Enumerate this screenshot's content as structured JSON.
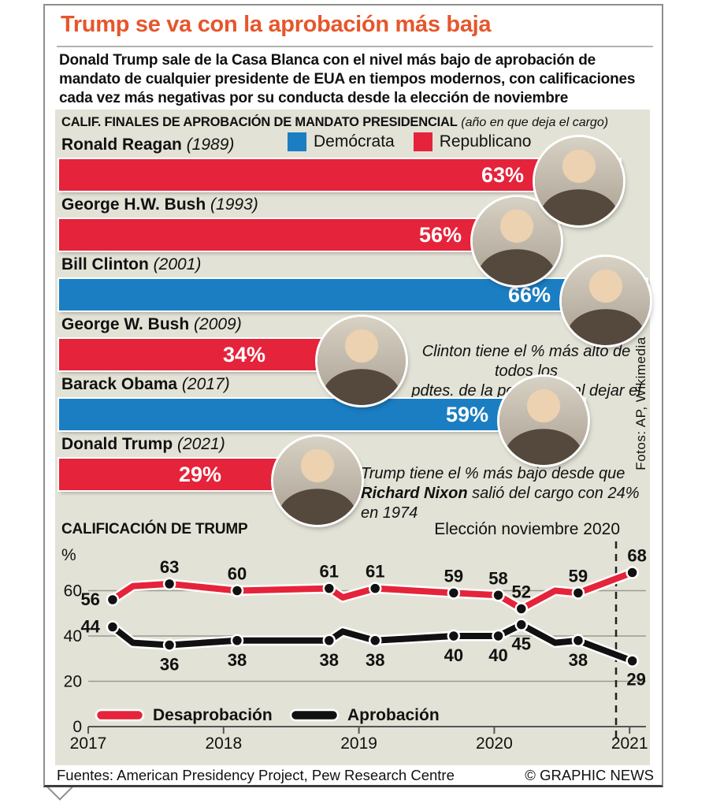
{
  "title": "Trump se va con la aprobación más baja",
  "intro": "Donald Trump sale de la Casa Blanca con el nivel más bajo de aprobación de mandato de cualquier presidente de EUA en tiempos modernos, con calificaciones cada vez más negativas por su conducta desde la elección de noviembre",
  "colors": {
    "republican": "#e5233a",
    "democrat": "#1b7ec2",
    "accent": "#e6562b",
    "panel": "#e3e2d6"
  },
  "credits": {
    "photos": "Fotos: AP, Wikimedia"
  },
  "footer": {
    "sources": "Fuentes: American Presidency Project, Pew Research Centre",
    "copyright": "© GRAPHIC NEWS"
  },
  "chart_data": [
    {
      "type": "bar",
      "orientation": "horizontal",
      "title": "CALIF. FINALES DE APROBACIÓN DE MANDATO PRESIDENCIAL",
      "subtitle": "(año en que deja el cargo)",
      "unit": "%",
      "xlim": [
        0,
        67
      ],
      "legend": [
        {
          "label": "Demócrata",
          "party": "democrat"
        },
        {
          "label": "Republicano",
          "party": "republican"
        }
      ],
      "bars": [
        {
          "name": "Ronald Reagan",
          "year_label": "(1989)",
          "value": 63,
          "pct_label": "63%",
          "party": "republican",
          "photo_pos": "inside"
        },
        {
          "name": "George H.W. Bush",
          "year_label": "(1993)",
          "value": 56,
          "pct_label": "56%",
          "party": "republican",
          "photo_pos": "inside"
        },
        {
          "name": "Bill Clinton",
          "year_label": "(2001)",
          "value": 66,
          "pct_label": "66%",
          "party": "democrat",
          "photo_pos": "inside"
        },
        {
          "name": "George W. Bush",
          "year_label": "(2009)",
          "value": 34,
          "pct_label": "34%",
          "party": "republican",
          "photo_pos": "end"
        },
        {
          "name": "Barack Obama",
          "year_label": "(2017)",
          "value": 59,
          "pct_label": "59%",
          "party": "democrat",
          "photo_pos": "inside"
        },
        {
          "name": "Donald Trump",
          "year_label": "(2021)",
          "value": 29,
          "pct_label": "29%",
          "party": "republican",
          "photo_pos": "end"
        }
      ],
      "annotations": [
        {
          "id": "clinton-note",
          "lines": [
            [
              {
                "t": "Clinton tiene el % más alto de todos los"
              }
            ],
            [
              {
                "t": "pdtes. de la posguerra al dejar el cargo"
              }
            ]
          ]
        },
        {
          "id": "nixon-note",
          "lines": [
            [
              {
                "t": "Trump tiene el % más bajo desde que"
              }
            ],
            [
              {
                "t": "Richard Nixon",
                "b": true
              },
              {
                "t": " salió del cargo con 24%"
              }
            ],
            [
              {
                "t": "en 1974"
              }
            ]
          ]
        }
      ]
    },
    {
      "type": "line",
      "title": "CALIFICACIÓN DE TRUMP",
      "ylabel": "%",
      "annotation": "Elección noviembre 2020",
      "election_line_year": 2020.9,
      "grid": true,
      "ylim": [
        0,
        75
      ],
      "yticks": [
        0,
        20,
        40,
        60
      ],
      "xticks": [
        2017,
        2018,
        2019,
        2020,
        2021
      ],
      "legend_position": "bottom-left-inside",
      "series": [
        {
          "name": "Desaprobación",
          "party": "republican",
          "points": [
            {
              "year": 2017.18,
              "v": 56,
              "label": "56",
              "pos": "left"
            },
            {
              "year": 2017.33,
              "v": 62
            },
            {
              "year": 2017.6,
              "v": 63,
              "label": "63"
            },
            {
              "year": 2018.1,
              "v": 60,
              "label": "60"
            },
            {
              "year": 2018.78,
              "v": 61,
              "label": "61"
            },
            {
              "year": 2018.88,
              "v": 57
            },
            {
              "year": 2019.12,
              "v": 61,
              "label": "61"
            },
            {
              "year": 2019.7,
              "v": 59,
              "label": "59"
            },
            {
              "year": 2020.03,
              "v": 58,
              "label": "58"
            },
            {
              "year": 2020.2,
              "v": 52,
              "label": "52"
            },
            {
              "year": 2020.45,
              "v": 60
            },
            {
              "year": 2020.62,
              "v": 59,
              "label": "59"
            },
            {
              "year": 2021.02,
              "v": 68,
              "label": "68",
              "pos": "above-right"
            }
          ]
        },
        {
          "name": "Aprobación",
          "party": "black",
          "points": [
            {
              "year": 2017.18,
              "v": 44,
              "label": "44",
              "pos": "left"
            },
            {
              "year": 2017.33,
              "v": 37
            },
            {
              "year": 2017.6,
              "v": 36,
              "label": "36",
              "pos": "below"
            },
            {
              "year": 2018.1,
              "v": 38,
              "label": "38",
              "pos": "below"
            },
            {
              "year": 2018.78,
              "v": 38,
              "label": "38",
              "pos": "below"
            },
            {
              "year": 2018.88,
              "v": 42
            },
            {
              "year": 2019.12,
              "v": 38,
              "label": "38",
              "pos": "below"
            },
            {
              "year": 2019.7,
              "v": 40,
              "label": "40",
              "pos": "below"
            },
            {
              "year": 2020.03,
              "v": 40,
              "label": "40",
              "pos": "below"
            },
            {
              "year": 2020.2,
              "v": 45,
              "label": "45",
              "pos": "below"
            },
            {
              "year": 2020.45,
              "v": 37
            },
            {
              "year": 2020.62,
              "v": 38,
              "label": "38",
              "pos": "below"
            },
            {
              "year": 2021.02,
              "v": 29,
              "label": "29",
              "pos": "below-right"
            }
          ]
        }
      ]
    }
  ]
}
